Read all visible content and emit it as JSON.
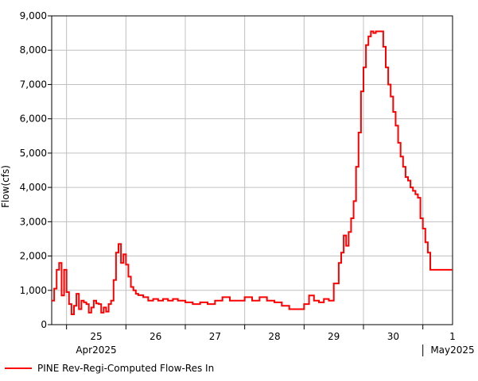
{
  "chart_data": {
    "type": "line",
    "title": "",
    "xlabel": "",
    "ylabel": "Flow(cfs)",
    "ylim": [
      0,
      9000
    ],
    "y_ticks": [
      0,
      1000,
      2000,
      3000,
      4000,
      5000,
      6000,
      7000,
      8000,
      9000
    ],
    "y_tick_labels": [
      "0",
      "1,000",
      "2,000",
      "3,000",
      "4,000",
      "5,000",
      "6,000",
      "7,000",
      "8,000",
      "9,000"
    ],
    "xlim": [
      "2025-04-24T18:00",
      "2025-05-01T12:00"
    ],
    "grid": true,
    "x_day_ticks": [
      {
        "date": "2025-04-25",
        "label": "25"
      },
      {
        "date": "2025-04-26",
        "label": "26"
      },
      {
        "date": "2025-04-27",
        "label": "27"
      },
      {
        "date": "2025-04-28",
        "label": "28"
      },
      {
        "date": "2025-04-29",
        "label": "29"
      },
      {
        "date": "2025-04-30",
        "label": "30"
      },
      {
        "date": "2025-05-01",
        "label": "1"
      }
    ],
    "x_month_labels": [
      {
        "date": "2025-04-25",
        "label": "Apr2025"
      },
      {
        "date": "2025-05-01",
        "label": "May2025"
      }
    ],
    "month_boundary": "2025-05-01",
    "legend_position": "bottom-left",
    "series": [
      {
        "name": "PINE Rev-Regi-Computed Flow-Res In",
        "color": "#ff0000",
        "step": true,
        "points": [
          [
            "2025-04-24T18:00",
            700
          ],
          [
            "2025-04-24T19:00",
            1050
          ],
          [
            "2025-04-24T20:00",
            1600
          ],
          [
            "2025-04-24T21:00",
            1800
          ],
          [
            "2025-04-24T22:00",
            850
          ],
          [
            "2025-04-24T23:00",
            1600
          ],
          [
            "2025-04-25T00:00",
            950
          ],
          [
            "2025-04-25T01:00",
            600
          ],
          [
            "2025-04-25T02:00",
            300
          ],
          [
            "2025-04-25T03:00",
            550
          ],
          [
            "2025-04-25T04:00",
            900
          ],
          [
            "2025-04-25T05:00",
            450
          ],
          [
            "2025-04-25T06:00",
            700
          ],
          [
            "2025-04-25T07:00",
            650
          ],
          [
            "2025-04-25T08:00",
            600
          ],
          [
            "2025-04-25T09:00",
            350
          ],
          [
            "2025-04-25T10:00",
            500
          ],
          [
            "2025-04-25T11:00",
            700
          ],
          [
            "2025-04-25T12:00",
            620
          ],
          [
            "2025-04-25T13:00",
            600
          ],
          [
            "2025-04-25T14:00",
            350
          ],
          [
            "2025-04-25T15:00",
            500
          ],
          [
            "2025-04-25T16:00",
            380
          ],
          [
            "2025-04-25T17:00",
            600
          ],
          [
            "2025-04-25T18:00",
            700
          ],
          [
            "2025-04-25T19:00",
            1300
          ],
          [
            "2025-04-25T20:00",
            2100
          ],
          [
            "2025-04-25T21:00",
            2350
          ],
          [
            "2025-04-25T22:00",
            1800
          ],
          [
            "2025-04-25T23:00",
            2050
          ],
          [
            "2025-04-26T00:00",
            1750
          ],
          [
            "2025-04-26T01:00",
            1400
          ],
          [
            "2025-04-26T02:00",
            1100
          ],
          [
            "2025-04-26T03:00",
            1000
          ],
          [
            "2025-04-26T04:00",
            900
          ],
          [
            "2025-04-26T05:00",
            860
          ],
          [
            "2025-04-26T07:00",
            800
          ],
          [
            "2025-04-26T09:00",
            700
          ],
          [
            "2025-04-26T11:00",
            750
          ],
          [
            "2025-04-26T13:00",
            700
          ],
          [
            "2025-04-26T15:00",
            750
          ],
          [
            "2025-04-26T17:00",
            700
          ],
          [
            "2025-04-26T19:00",
            750
          ],
          [
            "2025-04-26T21:00",
            700
          ],
          [
            "2025-04-27T00:00",
            650
          ],
          [
            "2025-04-27T03:00",
            600
          ],
          [
            "2025-04-27T06:00",
            650
          ],
          [
            "2025-04-27T09:00",
            600
          ],
          [
            "2025-04-27T12:00",
            700
          ],
          [
            "2025-04-27T15:00",
            800
          ],
          [
            "2025-04-27T18:00",
            700
          ],
          [
            "2025-04-27T21:00",
            700
          ],
          [
            "2025-04-28T00:00",
            800
          ],
          [
            "2025-04-28T03:00",
            700
          ],
          [
            "2025-04-28T06:00",
            800
          ],
          [
            "2025-04-28T09:00",
            700
          ],
          [
            "2025-04-28T12:00",
            650
          ],
          [
            "2025-04-28T15:00",
            550
          ],
          [
            "2025-04-28T18:00",
            450
          ],
          [
            "2025-04-28T21:00",
            450
          ],
          [
            "2025-04-29T00:00",
            600
          ],
          [
            "2025-04-29T02:00",
            850
          ],
          [
            "2025-04-29T04:00",
            700
          ],
          [
            "2025-04-29T06:00",
            650
          ],
          [
            "2025-04-29T08:00",
            750
          ],
          [
            "2025-04-29T10:00",
            700
          ],
          [
            "2025-04-29T12:00",
            1200
          ],
          [
            "2025-04-29T14:00",
            1800
          ],
          [
            "2025-04-29T15:00",
            2100
          ],
          [
            "2025-04-29T16:00",
            2600
          ],
          [
            "2025-04-29T17:00",
            2300
          ],
          [
            "2025-04-29T18:00",
            2700
          ],
          [
            "2025-04-29T19:00",
            3100
          ],
          [
            "2025-04-29T20:00",
            3600
          ],
          [
            "2025-04-29T21:00",
            4600
          ],
          [
            "2025-04-29T22:00",
            5600
          ],
          [
            "2025-04-29T23:00",
            6800
          ],
          [
            "2025-04-30T00:00",
            7500
          ],
          [
            "2025-04-30T01:00",
            8150
          ],
          [
            "2025-04-30T02:00",
            8400
          ],
          [
            "2025-04-30T03:00",
            8550
          ],
          [
            "2025-04-30T04:00",
            8500
          ],
          [
            "2025-04-30T05:00",
            8550
          ],
          [
            "2025-04-30T08:00",
            8100
          ],
          [
            "2025-04-30T09:00",
            7500
          ],
          [
            "2025-04-30T10:00",
            7000
          ],
          [
            "2025-04-30T11:00",
            6650
          ],
          [
            "2025-04-30T12:00",
            6200
          ],
          [
            "2025-04-30T13:00",
            5800
          ],
          [
            "2025-04-30T14:00",
            5300
          ],
          [
            "2025-04-30T15:00",
            4900
          ],
          [
            "2025-04-30T16:00",
            4600
          ],
          [
            "2025-04-30T17:00",
            4300
          ],
          [
            "2025-04-30T18:00",
            4200
          ],
          [
            "2025-04-30T19:00",
            4000
          ],
          [
            "2025-04-30T20:00",
            3900
          ],
          [
            "2025-04-30T21:00",
            3800
          ],
          [
            "2025-04-30T22:00",
            3700
          ],
          [
            "2025-04-30T23:00",
            3100
          ],
          [
            "2025-05-01T00:00",
            2800
          ],
          [
            "2025-05-01T01:00",
            2400
          ],
          [
            "2025-05-01T02:00",
            2100
          ],
          [
            "2025-05-01T03:00",
            1600
          ],
          [
            "2025-05-01T12:00",
            1600
          ]
        ]
      }
    ]
  }
}
